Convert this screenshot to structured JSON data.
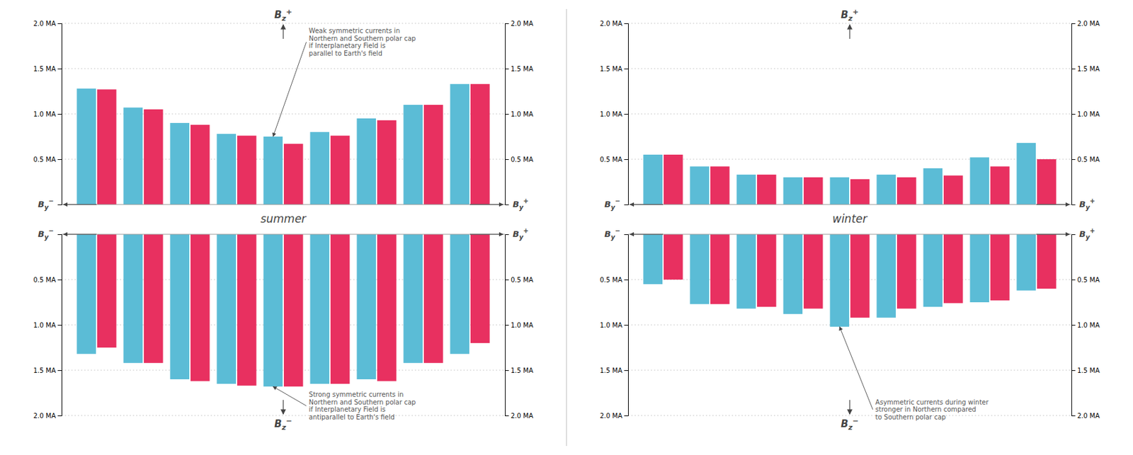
{
  "chart_data": [
    {
      "type": "bar",
      "title": "summer",
      "ylabel": "Bz+",
      "annotations": [
        "By−",
        "By+",
        "Weak symmetric currents in\nNorthern and Southern polar cap\nif Interplanetary Field is\nparallel to Earth's field"
      ],
      "categories": [
        null,
        null,
        null,
        null,
        null,
        null,
        null,
        null,
        null
      ],
      "series": [
        {
          "color": "#5bbcd6",
          "values": [
            1.28,
            1.07,
            0.9,
            0.78,
            0.75,
            0.8,
            0.95,
            1.1,
            1.33
          ]
        },
        {
          "color": "#e83060",
          "values": [
            1.27,
            1.05,
            0.88,
            0.76,
            0.67,
            0.76,
            0.93,
            1.1,
            1.33
          ]
        }
      ],
      "ylim": [
        0,
        2.0
      ],
      "yticks": [
        {
          "value": 0.5,
          "label": "0.5 MA"
        },
        {
          "value": 1.0,
          "label": "1.0 MA"
        },
        {
          "value": 1.5,
          "label": "1.5 MA"
        },
        {
          "value": 2.0,
          "label": "2.0 MA"
        }
      ],
      "grid": true,
      "tick_labels": "y"
    },
    {
      "type": "bar",
      "ylabel": "Bz−",
      "annotations": [
        "By−",
        "By+",
        "Strong symmetric currents in\nNorthern and Southern polar cap\nif Interplanetary Field is\nantiparallel to Earth's field"
      ],
      "categories": [
        null,
        null,
        null,
        null,
        null,
        null,
        null,
        null,
        null
      ],
      "series": [
        {
          "color": "#5bbcd6",
          "values": [
            1.32,
            1.42,
            1.6,
            1.65,
            1.68,
            1.65,
            1.6,
            1.42,
            1.32
          ]
        },
        {
          "color": "#e83060",
          "values": [
            1.25,
            1.42,
            1.62,
            1.67,
            1.68,
            1.65,
            1.62,
            1.42,
            1.2
          ]
        }
      ],
      "ylim": [
        2.0,
        0
      ],
      "yticks": [
        {
          "value": 0.5,
          "label": "0.5 MA"
        },
        {
          "value": 1.0,
          "label": "1.0 MA"
        },
        {
          "value": 1.5,
          "label": "1.5 MA"
        },
        {
          "value": 2.0,
          "label": "2.0 MA"
        }
      ],
      "grid": true,
      "tick_labels": "y"
    },
    {
      "type": "bar",
      "title": "winter",
      "ylabel": "Bz+",
      "annotations": [
        "By−",
        "By+"
      ],
      "categories": [
        null,
        null,
        null,
        null,
        null,
        null,
        null,
        null,
        null
      ],
      "series": [
        {
          "color": "#5bbcd6",
          "values": [
            0.55,
            0.42,
            0.33,
            0.3,
            0.3,
            0.33,
            0.4,
            0.52,
            0.68
          ]
        },
        {
          "color": "#e83060",
          "values": [
            0.55,
            0.42,
            0.33,
            0.3,
            0.28,
            0.3,
            0.32,
            0.42,
            0.5
          ]
        }
      ],
      "ylim": [
        0,
        2.0
      ],
      "yticks": [
        {
          "value": 0.5,
          "label": "0.5 MA"
        },
        {
          "value": 1.0,
          "label": "1.0 MA"
        },
        {
          "value": 1.5,
          "label": "1.5 MA"
        },
        {
          "value": 2.0,
          "label": "2.0 MA"
        }
      ],
      "grid": true,
      "tick_labels": "y"
    },
    {
      "type": "bar",
      "ylabel": "Bz−",
      "annotations": [
        "By−",
        "By+",
        "Asymmetric currents during winter\nstronger in Northern compared\nto Southern polar cap"
      ],
      "categories": [
        null,
        null,
        null,
        null,
        null,
        null,
        null,
        null,
        null
      ],
      "series": [
        {
          "color": "#5bbcd6",
          "values": [
            0.55,
            0.77,
            0.82,
            0.88,
            1.02,
            0.92,
            0.8,
            0.75,
            0.62
          ]
        },
        {
          "color": "#e83060",
          "values": [
            0.5,
            0.77,
            0.8,
            0.82,
            0.92,
            0.82,
            0.76,
            0.73,
            0.6
          ]
        }
      ],
      "ylim": [
        2.0,
        0
      ],
      "yticks": [
        {
          "value": 0.5,
          "label": "0.5 MA"
        },
        {
          "value": 1.0,
          "label": "1.0 MA"
        },
        {
          "value": 1.5,
          "label": "1.5 MA"
        },
        {
          "value": 2.0,
          "label": "2.0 MA"
        }
      ],
      "grid": true,
      "tick_labels": "y"
    }
  ]
}
